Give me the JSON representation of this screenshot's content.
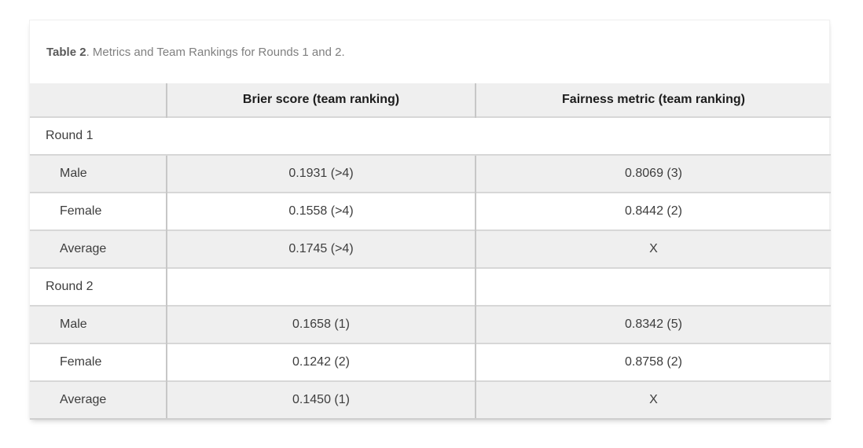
{
  "caption": {
    "bold": "Table 2",
    "text": ". Metrics and Team Rankings for Rounds 1 and 2."
  },
  "table": {
    "headers": {
      "metric": "",
      "brier": "Brier score (team ranking)",
      "fairness": "Fairness metric (team ranking)"
    },
    "round1": {
      "label": "Round 1",
      "rows": [
        {
          "label": "Male",
          "brier": "0.1931 (>4)",
          "fairness": "0.8069 (3)"
        },
        {
          "label": "Female",
          "brier": "0.1558 (>4)",
          "fairness": "0.8442 (2)"
        },
        {
          "label": "Average",
          "brier": "0.1745 (>4)",
          "fairness": "X"
        }
      ]
    },
    "round2": {
      "label": "Round 2",
      "rows": [
        {
          "label": "Male",
          "brier": "0.1658 (1)",
          "fairness": "0.8342 (5)"
        },
        {
          "label": "Female",
          "brier": "0.1242 (2)",
          "fairness": "0.8758 (2)"
        },
        {
          "label": "Average",
          "brier": "0.1450 (1)",
          "fairness": "X"
        }
      ]
    }
  },
  "colors": {
    "row_alt_background": "#efefef",
    "header_background": "#efefef",
    "border_horizontal": "#d7d7d7",
    "border_vertical": "#c7c7c7",
    "body_text": "#3d3d3d",
    "header_text": "#1d1d1d",
    "caption_bold_text": "#595959",
    "caption_text": "#7f7f7f"
  }
}
